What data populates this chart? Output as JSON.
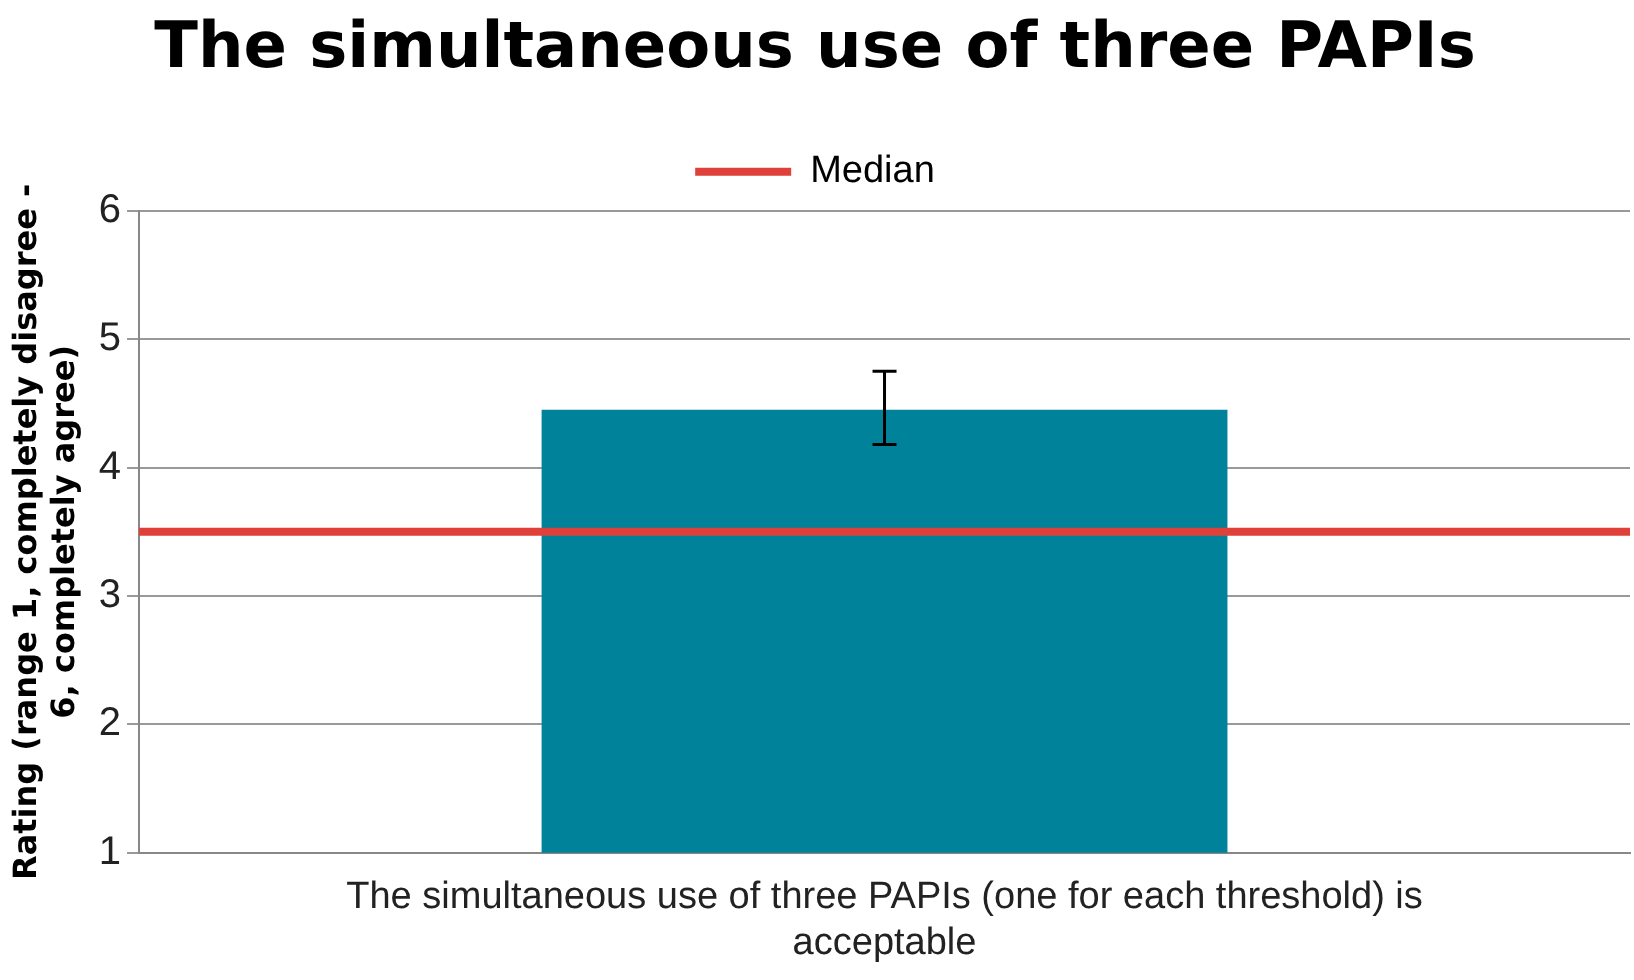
{
  "chart_data": {
    "type": "bar",
    "title": "The simultaneous use of three PAPIs",
    "ylabel": "Rating (range 1, completely disagree - 6, completely agree)",
    "categories": [
      "The simultaneous use of three PAPIs (one for each threshold) is acceptable"
    ],
    "values": [
      4.45
    ],
    "errors": [
      [
        4.18,
        4.75
      ]
    ],
    "color": "#00829b",
    "ylim": [
      1,
      6
    ],
    "yticks": [
      1,
      2,
      3,
      4,
      5,
      6
    ],
    "grid": "y",
    "legend": "top",
    "ref_lines": [
      {
        "axis": "y",
        "value": 3.5,
        "label": "Median",
        "color": "#e0403a"
      }
    ]
  }
}
